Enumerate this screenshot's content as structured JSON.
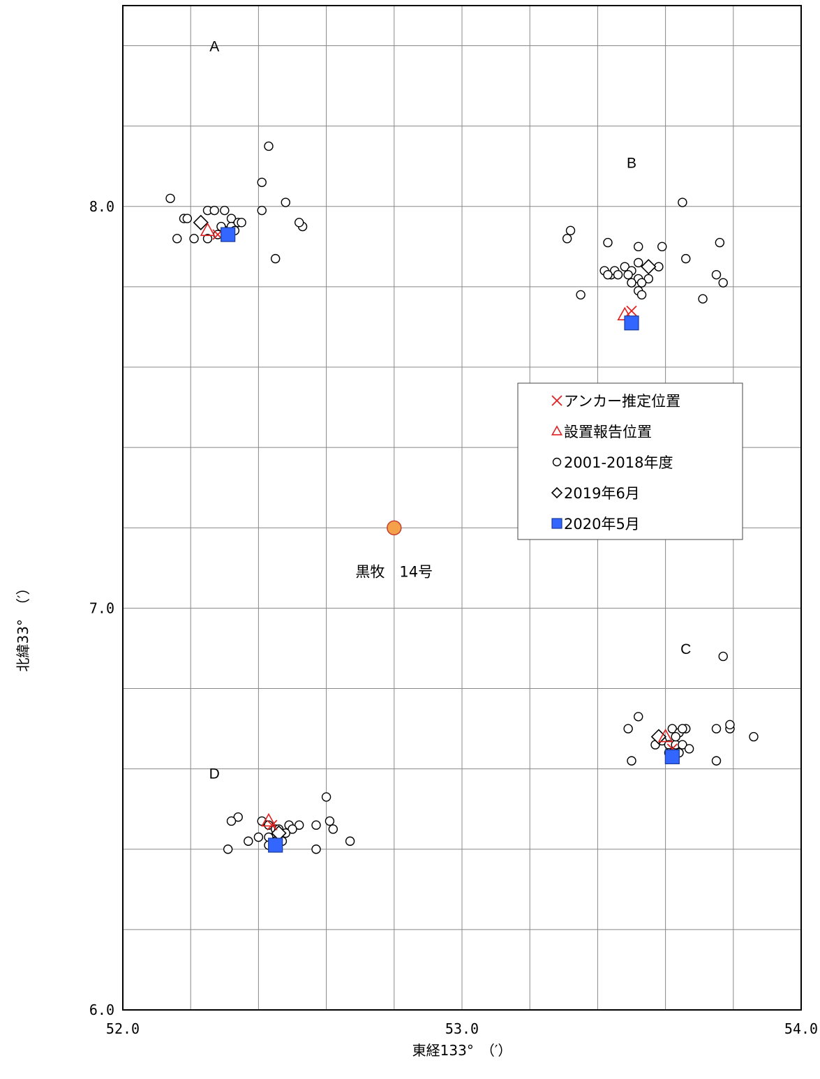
{
  "chart_data": {
    "type": "scatter",
    "title": "",
    "xlabel": "東経133°　（′）",
    "ylabel": "北緯33°　（′）",
    "xlim": [
      52.0,
      54.0
    ],
    "ylim": [
      6.0,
      8.5
    ],
    "x_major_ticks": [
      52.0,
      53.0,
      54.0
    ],
    "x_tick_labels": [
      "52.0",
      "53.0",
      "54.0"
    ],
    "x_minor_step": 0.2,
    "y_major_ticks": [
      6.0,
      7.0,
      8.0
    ],
    "y_tick_labels": [
      "6.0",
      "7.0",
      "8.0"
    ],
    "y_minor_step": 0.2,
    "grid": true,
    "legend_position": "right-middle",
    "legend": [
      {
        "series": "anchor",
        "label": "アンカー推定位置"
      },
      {
        "series": "report",
        "label": "設置報告位置"
      },
      {
        "series": "hist",
        "label": "2001-2018年度"
      },
      {
        "series": "y2019",
        "label": "2019年6月"
      },
      {
        "series": "y2020",
        "label": "2020年5月"
      }
    ],
    "station": {
      "name": "黒牧　14号",
      "x": 52.8,
      "y": 7.2,
      "color": "#f5a04a"
    },
    "group_labels": [
      {
        "text": "A",
        "x": 52.27,
        "y": 8.4
      },
      {
        "text": "B",
        "x": 53.5,
        "y": 8.11
      },
      {
        "text": "C",
        "x": 53.66,
        "y": 6.9
      },
      {
        "text": "D",
        "x": 52.27,
        "y": 6.59
      }
    ],
    "series": [
      {
        "key": "anchor",
        "marker": "x",
        "color": "#e02020",
        "points": [
          [
            52.28,
            7.93
          ],
          [
            53.5,
            7.74
          ],
          [
            53.62,
            6.65
          ],
          [
            52.44,
            6.46
          ]
        ]
      },
      {
        "key": "report",
        "marker": "triangle",
        "color": "#e02020",
        "points": [
          [
            52.25,
            7.94
          ],
          [
            53.48,
            7.73
          ],
          [
            53.6,
            6.68
          ],
          [
            52.43,
            6.47
          ]
        ]
      },
      {
        "key": "hist",
        "marker": "circle",
        "color": "#000000",
        "points": [
          [
            52.43,
            8.15
          ],
          [
            52.41,
            8.06
          ],
          [
            52.14,
            8.02
          ],
          [
            52.41,
            7.99
          ],
          [
            52.48,
            8.01
          ],
          [
            52.18,
            7.97
          ],
          [
            52.19,
            7.97
          ],
          [
            52.25,
            7.99
          ],
          [
            52.27,
            7.99
          ],
          [
            52.3,
            7.99
          ],
          [
            52.32,
            7.97
          ],
          [
            52.32,
            7.95
          ],
          [
            52.34,
            7.96
          ],
          [
            52.35,
            7.96
          ],
          [
            52.53,
            7.95
          ],
          [
            52.52,
            7.96
          ],
          [
            52.16,
            7.92
          ],
          [
            52.21,
            7.92
          ],
          [
            52.25,
            7.92
          ],
          [
            52.28,
            7.93
          ],
          [
            52.3,
            7.94
          ],
          [
            52.33,
            7.94
          ],
          [
            52.45,
            7.87
          ],
          [
            52.29,
            7.95
          ],
          [
            53.32,
            7.94
          ],
          [
            53.31,
            7.92
          ],
          [
            53.65,
            8.01
          ],
          [
            53.43,
            7.91
          ],
          [
            53.52,
            7.9
          ],
          [
            53.59,
            7.9
          ],
          [
            53.76,
            7.91
          ],
          [
            53.66,
            7.87
          ],
          [
            53.58,
            7.85
          ],
          [
            53.52,
            7.86
          ],
          [
            53.48,
            7.85
          ],
          [
            53.42,
            7.84
          ],
          [
            53.44,
            7.83
          ],
          [
            53.45,
            7.84
          ],
          [
            53.5,
            7.84
          ],
          [
            53.46,
            7.83
          ],
          [
            53.49,
            7.83
          ],
          [
            53.52,
            7.82
          ],
          [
            53.55,
            7.82
          ],
          [
            53.75,
            7.83
          ],
          [
            53.53,
            7.81
          ],
          [
            53.77,
            7.81
          ],
          [
            53.35,
            7.78
          ],
          [
            53.52,
            7.79
          ],
          [
            53.53,
            7.78
          ],
          [
            53.71,
            7.77
          ],
          [
            53.5,
            7.81
          ],
          [
            53.43,
            7.83
          ],
          [
            53.77,
            6.88
          ],
          [
            53.52,
            6.73
          ],
          [
            53.49,
            6.7
          ],
          [
            53.62,
            6.7
          ],
          [
            53.64,
            6.69
          ],
          [
            53.66,
            6.7
          ],
          [
            53.75,
            6.7
          ],
          [
            53.79,
            6.7
          ],
          [
            53.79,
            6.71
          ],
          [
            53.86,
            6.68
          ],
          [
            53.57,
            6.66
          ],
          [
            53.59,
            6.67
          ],
          [
            53.61,
            6.66
          ],
          [
            53.63,
            6.66
          ],
          [
            53.65,
            6.66
          ],
          [
            53.67,
            6.65
          ],
          [
            53.61,
            6.64
          ],
          [
            53.64,
            6.64
          ],
          [
            53.5,
            6.62
          ],
          [
            53.75,
            6.62
          ],
          [
            53.65,
            6.7
          ],
          [
            53.63,
            6.68
          ],
          [
            52.6,
            6.53
          ],
          [
            52.34,
            6.48
          ],
          [
            52.32,
            6.47
          ],
          [
            52.41,
            6.47
          ],
          [
            52.43,
            6.46
          ],
          [
            52.49,
            6.46
          ],
          [
            52.52,
            6.46
          ],
          [
            52.57,
            6.46
          ],
          [
            52.61,
            6.47
          ],
          [
            52.45,
            6.45
          ],
          [
            52.46,
            6.45
          ],
          [
            52.5,
            6.45
          ],
          [
            52.62,
            6.45
          ],
          [
            52.4,
            6.43
          ],
          [
            52.43,
            6.43
          ],
          [
            52.46,
            6.43
          ],
          [
            52.48,
            6.44
          ],
          [
            52.37,
            6.42
          ],
          [
            52.45,
            6.42
          ],
          [
            52.47,
            6.42
          ],
          [
            52.67,
            6.42
          ],
          [
            52.43,
            6.41
          ],
          [
            52.31,
            6.4
          ],
          [
            52.57,
            6.4
          ]
        ]
      },
      {
        "key": "y2019",
        "marker": "diamond",
        "color": "#000000",
        "points": [
          [
            52.23,
            7.96
          ],
          [
            53.55,
            7.85
          ],
          [
            53.58,
            6.68
          ],
          [
            52.46,
            6.44
          ]
        ]
      },
      {
        "key": "y2020",
        "marker": "square",
        "color": "#3366ff",
        "points": [
          [
            52.31,
            7.93
          ],
          [
            53.5,
            7.71
          ],
          [
            53.62,
            6.63
          ],
          [
            52.45,
            6.41
          ]
        ]
      }
    ]
  }
}
